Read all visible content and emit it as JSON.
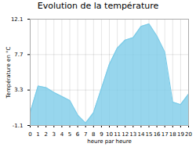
{
  "chart_data": {
    "type": "area",
    "title": "Evolution de la température",
    "x_label": "heure par heure",
    "y_label": "Température en °C",
    "x": [
      0,
      1,
      2,
      3,
      4,
      5,
      6,
      7,
      8,
      9,
      10,
      11,
      12,
      13,
      14,
      15,
      16,
      17,
      18,
      19,
      20
    ],
    "values": [
      0.5,
      3.8,
      3.6,
      3.0,
      2.5,
      2.0,
      0.2,
      -0.8,
      0.5,
      3.5,
      6.5,
      8.5,
      9.5,
      9.8,
      11.2,
      11.5,
      10.0,
      8.0,
      1.8,
      1.5,
      2.8
    ],
    "color": "#7dcce8",
    "xlim": [
      0,
      20
    ],
    "xticks": [
      0,
      1,
      2,
      3,
      4,
      5,
      6,
      7,
      8,
      9,
      10,
      11,
      12,
      13,
      14,
      15,
      16,
      17,
      18,
      19,
      20
    ],
    "ylim": [
      -1.1,
      12.1
    ],
    "yticks": [
      -1.1,
      3.3,
      7.7,
      12.1
    ],
    "grid": true
  }
}
